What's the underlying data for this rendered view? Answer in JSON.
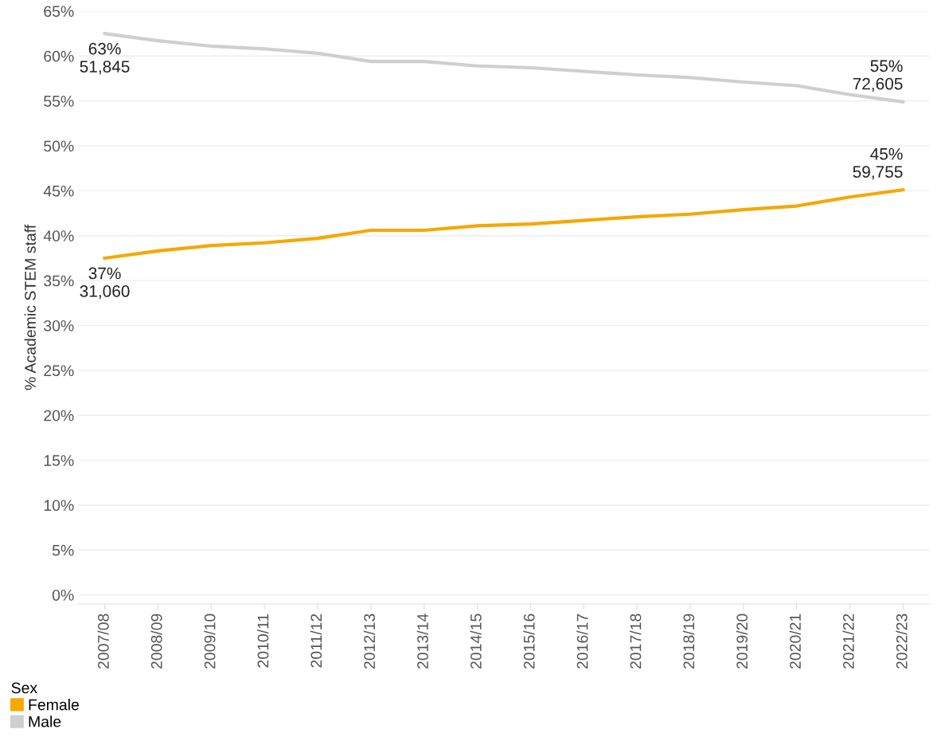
{
  "chart_data": {
    "type": "line",
    "ylabel": "% Academic STEM staff",
    "legend_title": "Sex",
    "legend": "bottom left",
    "grid": "y",
    "marker": "none",
    "line_style": "solid",
    "categories": [
      "2007/08",
      "2008/09",
      "2009/10",
      "2010/11",
      "2011/12",
      "2012/13",
      "2013/14",
      "2014/15",
      "2015/16",
      "2016/17",
      "2017/18",
      "2018/19",
      "2019/20",
      "2020/21",
      "2021/22",
      "2022/23"
    ],
    "series": [
      {
        "name": "Female",
        "color": "#f5a800",
        "values": [
          37.5,
          38.3,
          38.9,
          39.2,
          39.7,
          40.6,
          40.6,
          41.1,
          41.3,
          41.7,
          42.1,
          42.4,
          42.9,
          43.3,
          44.3,
          45.1
        ]
      },
      {
        "name": "Male",
        "color": "#cfcfcf",
        "values": [
          62.5,
          61.7,
          61.1,
          60.8,
          60.3,
          59.4,
          59.4,
          58.9,
          58.7,
          58.3,
          57.9,
          57.6,
          57.1,
          56.7,
          55.7,
          54.9
        ]
      }
    ],
    "ylim": [
      -1,
      65
    ],
    "yticks": [
      {
        "value": 0,
        "label": "0%"
      },
      {
        "value": 5,
        "label": "5%"
      },
      {
        "value": 10,
        "label": "10%"
      },
      {
        "value": 15,
        "label": "15%"
      },
      {
        "value": 20,
        "label": "20%"
      },
      {
        "value": 25,
        "label": "25%"
      },
      {
        "value": 30,
        "label": "30%"
      },
      {
        "value": 35,
        "label": "35%"
      },
      {
        "value": 40,
        "label": "40%"
      },
      {
        "value": 45,
        "label": "45%"
      },
      {
        "value": 50,
        "label": "50%"
      },
      {
        "value": 55,
        "label": "55%"
      },
      {
        "value": 60,
        "label": "60%"
      },
      {
        "value": 65,
        "label": "65%"
      }
    ],
    "annotations": [
      {
        "text": "63%\n51,845",
        "x": "2007/08",
        "y": 62.5
      },
      {
        "text": "55%\n72,605",
        "x": "2022/23",
        "y": 54.9
      },
      {
        "text": "37%\n31,060",
        "x": "2007/08",
        "y": 37.5
      },
      {
        "text": "45%\n59,755",
        "x": "2022/23",
        "y": 45.1
      }
    ]
  }
}
